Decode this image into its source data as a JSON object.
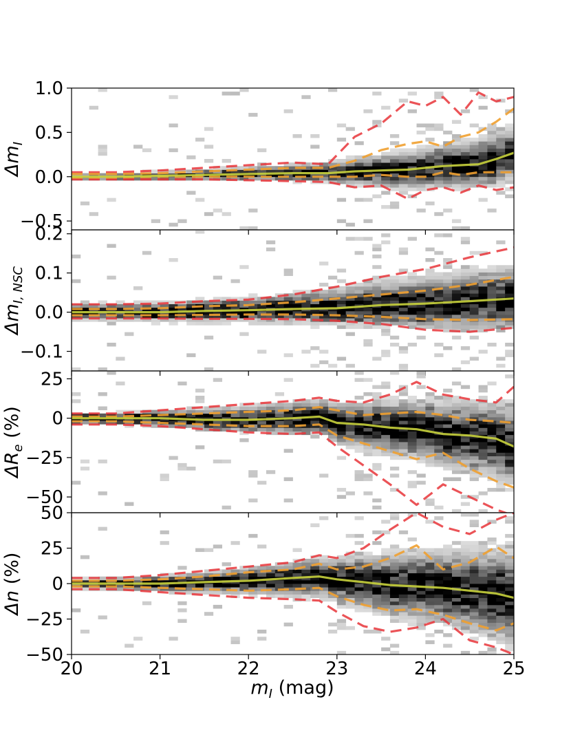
{
  "chart_data": [
    {
      "type": "heatmap",
      "panel": "delta-m",
      "ylabel_main": "Δm",
      "ylabel_sub": "I",
      "ylabel_suffix": "",
      "ylim": [
        -0.6,
        1.0
      ],
      "yticks": [
        -0.5,
        0.0,
        0.5,
        1.0
      ],
      "ytick_labels": [
        "−0.5",
        "0.0",
        "0.5",
        "1.0"
      ],
      "density_spread": [
        0.012,
        0.02,
        0.03,
        0.04,
        0.06,
        0.09,
        0.12,
        0.14
      ],
      "series": [
        {
          "role": "median",
          "color": "#c8d23c",
          "style": "solid",
          "x": [
            20.0,
            20.5,
            21.0,
            21.5,
            22.0,
            22.5,
            22.9,
            23.2,
            23.5,
            23.8,
            24.0,
            24.2,
            24.4,
            24.6,
            24.8,
            25.0
          ],
          "y": [
            0.0,
            0.0,
            0.01,
            0.02,
            0.03,
            0.04,
            0.04,
            0.06,
            0.07,
            0.08,
            0.1,
            0.12,
            0.13,
            0.14,
            0.2,
            0.27
          ]
        },
        {
          "role": "upper-1sigma",
          "color": "#f0a030",
          "style": "dashed",
          "x": [
            20.0,
            20.5,
            21.0,
            21.5,
            22.0,
            22.5,
            22.9,
            23.2,
            23.5,
            23.8,
            24.0,
            24.2,
            24.4,
            24.6,
            24.8,
            25.0
          ],
          "y": [
            0.03,
            0.03,
            0.04,
            0.06,
            0.08,
            0.1,
            0.1,
            0.18,
            0.3,
            0.37,
            0.4,
            0.34,
            0.45,
            0.5,
            0.62,
            0.77
          ]
        },
        {
          "role": "lower-1sigma",
          "color": "#f0a030",
          "style": "dashed",
          "x": [
            20.0,
            20.5,
            21.0,
            21.5,
            22.0,
            22.5,
            22.9,
            23.2,
            23.5,
            23.8,
            24.0,
            24.2,
            24.4,
            24.6,
            24.8,
            25.0
          ],
          "y": [
            -0.01,
            -0.01,
            0.0,
            0.0,
            0.0,
            0.0,
            0.0,
            0.0,
            0.02,
            0.0,
            0.0,
            0.05,
            0.02,
            0.05,
            0.05,
            0.05
          ]
        },
        {
          "role": "upper-2sigma",
          "color": "#e8353a",
          "style": "dashed",
          "x": [
            20.0,
            20.5,
            21.0,
            21.5,
            22.0,
            22.5,
            22.9,
            23.2,
            23.5,
            23.8,
            24.0,
            24.2,
            24.4,
            24.6,
            24.8,
            25.0
          ],
          "y": [
            0.05,
            0.05,
            0.07,
            0.1,
            0.13,
            0.16,
            0.14,
            0.45,
            0.6,
            0.85,
            0.8,
            0.9,
            0.7,
            0.95,
            0.85,
            0.9
          ]
        },
        {
          "role": "lower-2sigma",
          "color": "#e8353a",
          "style": "dashed",
          "x": [
            20.0,
            20.5,
            21.0,
            21.5,
            22.0,
            22.5,
            22.9,
            23.2,
            23.5,
            23.8,
            24.0,
            24.2,
            24.4,
            24.6,
            24.8,
            25.0
          ],
          "y": [
            -0.03,
            -0.03,
            -0.03,
            -0.03,
            -0.04,
            -0.05,
            -0.06,
            -0.12,
            -0.1,
            -0.25,
            -0.15,
            -0.12,
            -0.18,
            -0.1,
            -0.15,
            -0.12
          ]
        }
      ]
    },
    {
      "type": "heatmap",
      "panel": "delta-m-nsc",
      "ylabel_main": "Δm",
      "ylabel_sub": "I, NSC",
      "ylabel_suffix": "",
      "ylim": [
        -0.15,
        0.21
      ],
      "yticks": [
        -0.1,
        0.0,
        0.1,
        0.2
      ],
      "ytick_labels": [
        "−0.1",
        "0.0",
        "0.1",
        "0.2"
      ],
      "density_spread": [
        0.012,
        0.014,
        0.017,
        0.02,
        0.025,
        0.03,
        0.035,
        0.04
      ],
      "series": [
        {
          "role": "median",
          "color": "#c8d23c",
          "style": "solid",
          "x": [
            20.0,
            20.5,
            21.0,
            21.5,
            22.0,
            22.5,
            23.0,
            23.5,
            24.0,
            24.5,
            25.0
          ],
          "y": [
            0.0,
            0.0,
            0.0,
            0.003,
            0.005,
            0.008,
            0.01,
            0.018,
            0.022,
            0.028,
            0.035
          ]
        },
        {
          "role": "upper-1sigma",
          "color": "#f0a030",
          "style": "dashed",
          "x": [
            20.0,
            20.5,
            21.0,
            21.5,
            22.0,
            22.5,
            23.0,
            23.5,
            24.0,
            24.5,
            25.0
          ],
          "y": [
            0.008,
            0.008,
            0.01,
            0.015,
            0.018,
            0.025,
            0.035,
            0.045,
            0.055,
            0.07,
            0.09
          ]
        },
        {
          "role": "lower-1sigma",
          "color": "#f0a030",
          "style": "dashed",
          "x": [
            20.0,
            20.5,
            21.0,
            21.5,
            22.0,
            22.5,
            23.0,
            23.5,
            24.0,
            24.5,
            25.0
          ],
          "y": [
            -0.008,
            -0.008,
            -0.008,
            -0.007,
            -0.006,
            -0.006,
            -0.008,
            -0.012,
            -0.018,
            -0.02,
            -0.018
          ]
        },
        {
          "role": "upper-2sigma",
          "color": "#e8353a",
          "style": "dashed",
          "x": [
            20.0,
            20.5,
            21.0,
            21.5,
            22.0,
            22.5,
            23.0,
            23.5,
            24.0,
            24.5,
            25.0
          ],
          "y": [
            0.02,
            0.02,
            0.022,
            0.028,
            0.032,
            0.045,
            0.065,
            0.09,
            0.11,
            0.14,
            0.165
          ]
        },
        {
          "role": "lower-2sigma",
          "color": "#e8353a",
          "style": "dashed",
          "x": [
            20.0,
            20.5,
            21.0,
            21.5,
            22.0,
            22.5,
            23.0,
            23.5,
            24.0,
            24.5,
            25.0
          ],
          "y": [
            -0.016,
            -0.016,
            -0.016,
            -0.017,
            -0.017,
            -0.018,
            -0.022,
            -0.03,
            -0.045,
            -0.05,
            -0.04
          ]
        }
      ]
    },
    {
      "type": "heatmap",
      "panel": "delta-re",
      "ylabel_main": "ΔR",
      "ylabel_sub": "e",
      "ylabel_suffix": " (%)",
      "ylim": [
        -60,
        30
      ],
      "yticks": [
        -50,
        -25,
        0,
        25
      ],
      "ytick_labels": [
        "−50",
        "−25",
        "0",
        "25"
      ],
      "density_spread": [
        2.0,
        2.5,
        3.5,
        4.5,
        6.0,
        8.0,
        10.0,
        12.0
      ],
      "series": [
        {
          "role": "median",
          "color": "#c8d23c",
          "style": "solid",
          "x": [
            20.0,
            20.5,
            21.0,
            21.5,
            22.0,
            22.5,
            22.8,
            23.0,
            23.3,
            23.6,
            23.9,
            24.2,
            24.5,
            24.8,
            25.0
          ],
          "y": [
            0,
            0,
            0,
            -1,
            -1,
            0,
            1,
            -3,
            -4,
            -6,
            -7,
            -10,
            -11,
            -13,
            -18
          ]
        },
        {
          "role": "upper-1sigma",
          "color": "#f0a030",
          "style": "dashed",
          "x": [
            20.0,
            20.5,
            21.0,
            21.5,
            22.0,
            22.5,
            22.8,
            23.0,
            23.3,
            23.6,
            23.9,
            24.2,
            24.5,
            24.8,
            25.0
          ],
          "y": [
            1,
            1,
            2,
            3,
            4,
            5,
            7,
            5,
            2,
            3,
            4,
            2,
            -1,
            -2,
            -3
          ]
        },
        {
          "role": "lower-1sigma",
          "color": "#f0a030",
          "style": "dashed",
          "x": [
            20.0,
            20.5,
            21.0,
            21.5,
            22.0,
            22.5,
            22.8,
            23.0,
            23.3,
            23.6,
            23.9,
            24.2,
            24.5,
            24.8,
            25.0
          ],
          "y": [
            -2,
            -2,
            -3,
            -4,
            -5,
            -5,
            -4,
            -11,
            -16,
            -21,
            -26,
            -22,
            -32,
            -40,
            -44
          ]
        },
        {
          "role": "upper-2sigma",
          "color": "#e8353a",
          "style": "dashed",
          "x": [
            20.0,
            20.5,
            21.0,
            21.5,
            22.0,
            22.5,
            22.8,
            23.0,
            23.3,
            23.6,
            23.9,
            24.2,
            24.5,
            24.8,
            25.0
          ],
          "y": [
            3,
            3,
            5,
            7,
            9,
            11,
            13,
            11,
            10,
            15,
            23,
            15,
            12,
            10,
            20
          ]
        },
        {
          "role": "lower-2sigma",
          "color": "#e8353a",
          "style": "dashed",
          "x": [
            20.0,
            20.5,
            21.0,
            21.5,
            22.0,
            22.5,
            22.8,
            23.0,
            23.3,
            23.6,
            23.9,
            24.2,
            24.5,
            24.8,
            25.0
          ],
          "y": [
            -4,
            -4,
            -5,
            -7,
            -9,
            -10,
            -9,
            -18,
            -30,
            -42,
            -55,
            -42,
            -50,
            -58,
            -62
          ]
        }
      ]
    },
    {
      "type": "heatmap",
      "panel": "delta-n",
      "ylabel_main": "Δn",
      "ylabel_sub": "",
      "ylabel_suffix": " (%)",
      "ylim": [
        -50,
        50
      ],
      "yticks": [
        -50,
        -25,
        0,
        25,
        50
      ],
      "ytick_labels": [
        "−50",
        "−25",
        "0",
        "25",
        "50"
      ],
      "density_spread": [
        1.5,
        2.5,
        3.5,
        5.0,
        7.0,
        10.0,
        13.0,
        16.0
      ],
      "series": [
        {
          "role": "median",
          "color": "#c8d23c",
          "style": "solid",
          "x": [
            20.0,
            20.5,
            21.0,
            21.5,
            22.0,
            22.5,
            22.8,
            23.0,
            23.3,
            23.6,
            23.9,
            24.2,
            24.5,
            24.8,
            25.0
          ],
          "y": [
            0,
            0,
            0,
            1,
            2,
            4,
            5,
            3,
            1,
            -1,
            -2,
            -3,
            -5,
            -7,
            -10
          ]
        },
        {
          "role": "upper-1sigma",
          "color": "#f0a030",
          "style": "dashed",
          "x": [
            20.0,
            20.5,
            21.0,
            21.5,
            22.0,
            22.5,
            22.8,
            23.0,
            23.3,
            23.6,
            23.9,
            24.2,
            24.5,
            24.8,
            25.0
          ],
          "y": [
            2,
            2,
            3,
            5,
            8,
            10,
            14,
            10,
            12,
            18,
            27,
            10,
            15,
            26,
            18
          ]
        },
        {
          "role": "lower-1sigma",
          "color": "#f0a030",
          "style": "dashed",
          "x": [
            20.0,
            20.5,
            21.0,
            21.5,
            22.0,
            22.5,
            22.8,
            23.0,
            23.3,
            23.6,
            23.9,
            24.2,
            24.5,
            24.8,
            25.0
          ],
          "y": [
            -2,
            -2,
            -3,
            -4,
            -5,
            -4,
            -3,
            -9,
            -15,
            -19,
            -18,
            -22,
            -28,
            -33,
            -28
          ]
        },
        {
          "role": "upper-2sigma",
          "color": "#e8353a",
          "style": "dashed",
          "x": [
            20.0,
            20.5,
            21.0,
            21.5,
            22.0,
            22.5,
            22.8,
            23.0,
            23.3,
            23.6,
            23.9,
            24.2,
            24.5,
            24.8,
            25.0
          ],
          "y": [
            4,
            4,
            6,
            9,
            12,
            15,
            20,
            18,
            25,
            38,
            50,
            40,
            35,
            45,
            50
          ]
        },
        {
          "role": "lower-2sigma",
          "color": "#e8353a",
          "style": "dashed",
          "x": [
            20.0,
            20.5,
            21.0,
            21.5,
            22.0,
            22.5,
            22.8,
            23.0,
            23.3,
            23.6,
            23.9,
            24.2,
            24.5,
            24.8,
            25.0
          ],
          "y": [
            -4,
            -4,
            -6,
            -8,
            -10,
            -11,
            -12,
            -20,
            -30,
            -34,
            -31,
            -25,
            -40,
            -45,
            -50
          ]
        }
      ]
    }
  ],
  "shared_x": {
    "xlim": [
      20,
      25
    ],
    "xticks": [
      20,
      21,
      22,
      23,
      24,
      25
    ],
    "xtick_labels": [
      "20",
      "21",
      "22",
      "23",
      "24",
      "25"
    ],
    "xlabel_main": "m",
    "xlabel_sub": "I",
    "xlabel_suffix": " (mag)"
  },
  "colors": {
    "median": "#c8d23c",
    "one_sigma": "#f0a030",
    "two_sigma": "#e8353a",
    "density_scale": "greys"
  }
}
